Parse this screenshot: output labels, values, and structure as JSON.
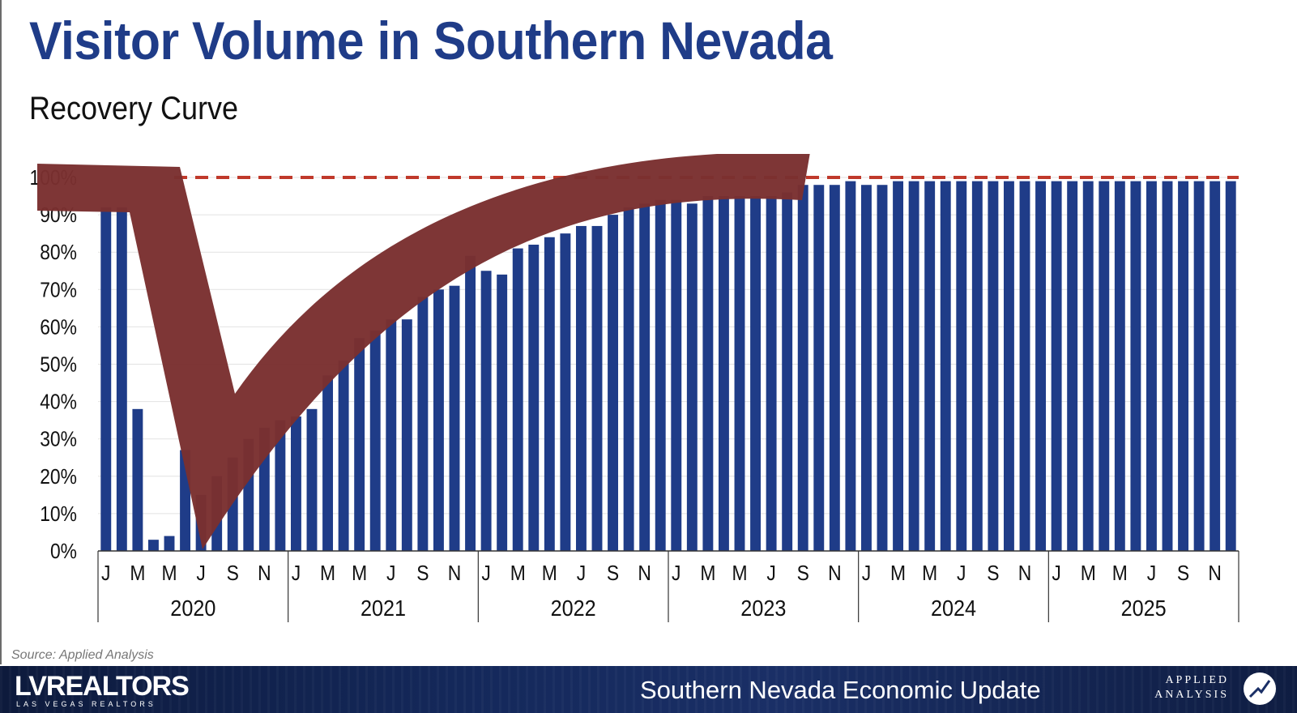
{
  "title": "Visitor Volume in Southern Nevada",
  "subtitle": "Recovery Curve",
  "source": "Source: Applied Analysis",
  "footer": {
    "logo_main": "LVREALTORS",
    "logo_sub": "LAS VEGAS REALTORS",
    "title": "Southern Nevada Economic Update",
    "brand_line1": "APPLIED",
    "brand_line2": "ANALYSIS"
  },
  "colors": {
    "bar": "#1f3c88",
    "title": "#1f3c88",
    "reference_line": "#c0392b",
    "curve_overlay": "#7a3030"
  },
  "chart_data": {
    "type": "bar",
    "title": "Visitor Volume in Southern Nevada",
    "subtitle": "Recovery Curve",
    "ylim": [
      0,
      100
    ],
    "ytick_labels": [
      "0%",
      "10%",
      "20%",
      "30%",
      "40%",
      "50%",
      "60%",
      "70%",
      "80%",
      "90%",
      "100%"
    ],
    "years": [
      "2020",
      "2021",
      "2022",
      "2023",
      "2024",
      "2025"
    ],
    "month_labels": [
      "J",
      "",
      "M",
      "",
      "M",
      "",
      "J",
      "",
      "S",
      "",
      "N",
      ""
    ],
    "reference_line": 100,
    "grid": true,
    "values": [
      92,
      92,
      38,
      3,
      4,
      27,
      15,
      20,
      25,
      30,
      33,
      35,
      36,
      38,
      47,
      51,
      57,
      59,
      62,
      62,
      68,
      70,
      71,
      79,
      75,
      74,
      81,
      82,
      84,
      85,
      87,
      87,
      90,
      92,
      93,
      94,
      94,
      93,
      95,
      95,
      95,
      95,
      95,
      96,
      98,
      98,
      98,
      99,
      98,
      98,
      99,
      99,
      99,
      99,
      99,
      99,
      99,
      99,
      99,
      99,
      99,
      99,
      99,
      99,
      99,
      99,
      99,
      99,
      99,
      99,
      99,
      99
    ],
    "overlay": "V-shaped recovery curve drawn over bars"
  }
}
